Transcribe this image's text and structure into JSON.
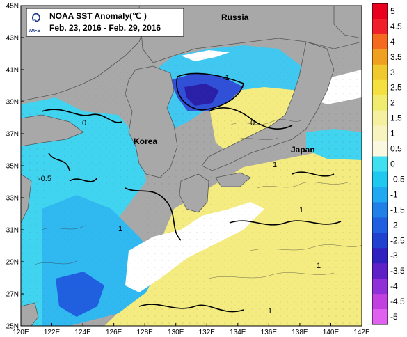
{
  "title": {
    "line1": "NOAA SST Anomaly(℃ )",
    "line2": "Feb. 23, 2016 - Feb. 29, 2016",
    "logo_text": "NIFS"
  },
  "lat_ticks": [
    "45N",
    "43N",
    "41N",
    "39N",
    "37N",
    "35N",
    "33N",
    "31N",
    "29N",
    "27N",
    "25N"
  ],
  "lon_ticks": [
    "120E",
    "122E",
    "124E",
    "126E",
    "128E",
    "130E",
    "132E",
    "134E",
    "136E",
    "138E",
    "140E",
    "142E"
  ],
  "places": {
    "russia": "Russia",
    "korea": "Korea",
    "japan": "Japan"
  },
  "contour_labels": [
    "-0.5",
    "0",
    "1",
    "-1",
    "1",
    "0",
    "1",
    "1",
    "1"
  ],
  "colorbar": {
    "labels": [
      "5",
      "4.5",
      "4",
      "3.5",
      "3",
      "2.5",
      "2",
      "1.5",
      "1",
      "0.5",
      "0",
      "-0.5",
      "-1",
      "-1.5",
      "-2",
      "-2.5",
      "-3",
      "-3.5",
      "-4",
      "-4.5",
      "-5"
    ],
    "colors": [
      "#e8001e",
      "#f0202a",
      "#f46a1e",
      "#f0a020",
      "#f0c830",
      "#f4e040",
      "#f0ec70",
      "#f4f0a0",
      "#f8f4c0",
      "#faf8e0",
      "#40e0f0",
      "#20c8f0",
      "#20a8f0",
      "#2080e8",
      "#2060e0",
      "#2040d0",
      "#3020c0",
      "#6020c8",
      "#9030d8",
      "#c040e0",
      "#e060f0"
    ]
  },
  "legend": {
    "range": [
      -5,
      5
    ],
    "step": 0.5,
    "unit": "℃"
  },
  "icons": {
    "logo": "nifs-logo-icon"
  }
}
